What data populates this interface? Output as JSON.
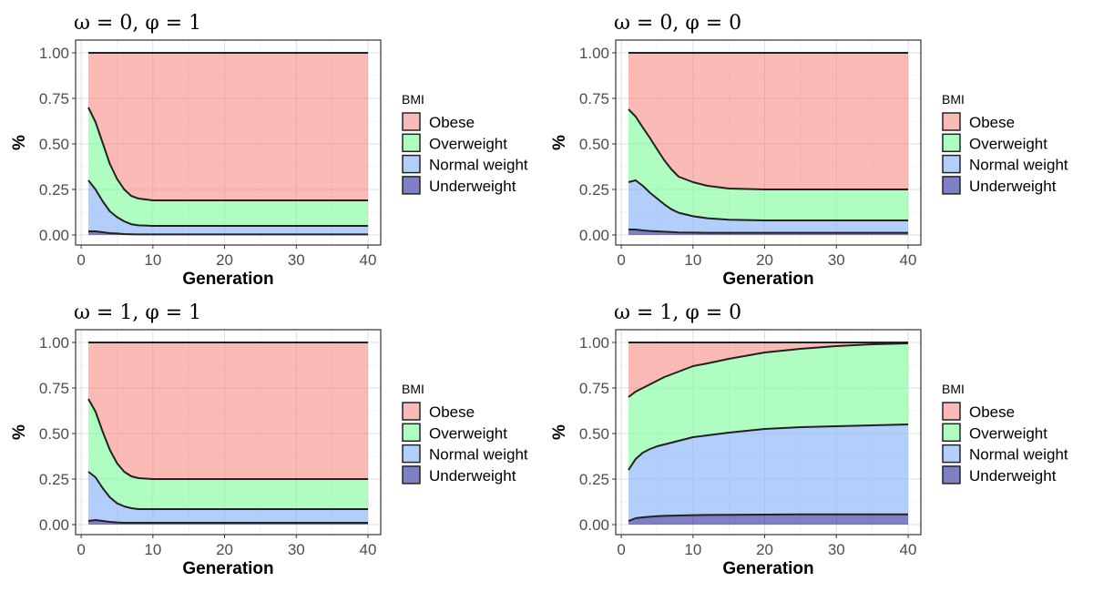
{
  "chart_data": [
    {
      "type": "area",
      "stacked": true,
      "title": "ω = 0, φ = 1",
      "xlabel": "Generation",
      "ylabel": "%",
      "xlim": [
        1,
        40
      ],
      "ylim": [
        0,
        1
      ],
      "xticks": [
        0,
        10,
        20,
        30,
        40
      ],
      "xtick_labels": [
        "0",
        "10",
        "20",
        "30",
        "40"
      ],
      "yticks": [
        0,
        0.25,
        0.5,
        0.75,
        1
      ],
      "ytick_labels": [
        "0.00",
        "0.25",
        "0.50",
        "0.75",
        "1.00"
      ],
      "grid": true,
      "legend_title": "BMI",
      "legend_position": "right",
      "x": [
        1,
        2,
        3,
        4,
        5,
        6,
        7,
        8,
        10,
        15,
        20,
        25,
        30,
        35,
        40
      ],
      "series": [
        {
          "name": "Underweight",
          "values": [
            0.02,
            0.02,
            0.015,
            0.01,
            0.008,
            0.005,
            0.004,
            0.003,
            0.003,
            0.003,
            0.003,
            0.003,
            0.003,
            0.003,
            0.003
          ]
        },
        {
          "name": "Normal weight",
          "values": [
            0.28,
            0.23,
            0.17,
            0.12,
            0.09,
            0.07,
            0.055,
            0.05,
            0.047,
            0.047,
            0.047,
            0.047,
            0.047,
            0.047,
            0.047
          ]
        },
        {
          "name": "Overweight",
          "values": [
            0.4,
            0.37,
            0.32,
            0.26,
            0.21,
            0.175,
            0.155,
            0.147,
            0.14,
            0.14,
            0.14,
            0.14,
            0.14,
            0.14,
            0.14
          ]
        },
        {
          "name": "Obese",
          "values": [
            0.3,
            0.38,
            0.495,
            0.61,
            0.692,
            0.75,
            0.786,
            0.8,
            0.81,
            0.81,
            0.81,
            0.81,
            0.81,
            0.81,
            0.81
          ]
        }
      ]
    },
    {
      "type": "area",
      "stacked": true,
      "title": "ω = 0, φ = 0",
      "xlabel": "Generation",
      "ylabel": "%",
      "xlim": [
        1,
        40
      ],
      "ylim": [
        0,
        1
      ],
      "xticks": [
        0,
        10,
        20,
        30,
        40
      ],
      "xtick_labels": [
        "0",
        "10",
        "20",
        "30",
        "40"
      ],
      "yticks": [
        0,
        0.25,
        0.5,
        0.75,
        1
      ],
      "ytick_labels": [
        "0.00",
        "0.25",
        "0.50",
        "0.75",
        "1.00"
      ],
      "grid": true,
      "legend_title": "BMI",
      "legend_position": "right",
      "x": [
        1,
        2,
        3,
        4,
        5,
        6,
        7,
        8,
        10,
        12,
        15,
        20,
        25,
        30,
        35,
        40
      ],
      "series": [
        {
          "name": "Underweight",
          "values": [
            0.03,
            0.03,
            0.025,
            0.022,
            0.02,
            0.018,
            0.016,
            0.014,
            0.013,
            0.012,
            0.012,
            0.012,
            0.012,
            0.012,
            0.012,
            0.012
          ]
        },
        {
          "name": "Normal weight",
          "values": [
            0.26,
            0.27,
            0.245,
            0.21,
            0.18,
            0.15,
            0.125,
            0.108,
            0.09,
            0.08,
            0.072,
            0.068,
            0.068,
            0.068,
            0.068,
            0.068
          ]
        },
        {
          "name": "Overweight",
          "values": [
            0.4,
            0.35,
            0.32,
            0.3,
            0.27,
            0.242,
            0.219,
            0.198,
            0.187,
            0.178,
            0.171,
            0.17,
            0.17,
            0.17,
            0.17,
            0.17
          ]
        },
        {
          "name": "Obese",
          "values": [
            0.31,
            0.35,
            0.41,
            0.468,
            0.53,
            0.59,
            0.64,
            0.68,
            0.71,
            0.73,
            0.745,
            0.75,
            0.75,
            0.75,
            0.75,
            0.75
          ]
        }
      ]
    },
    {
      "type": "area",
      "stacked": true,
      "title": "ω = 1, φ = 1",
      "xlabel": "Generation",
      "ylabel": "%",
      "xlim": [
        1,
        40
      ],
      "ylim": [
        0,
        1
      ],
      "xticks": [
        0,
        10,
        20,
        30,
        40
      ],
      "xtick_labels": [
        "0",
        "10",
        "20",
        "30",
        "40"
      ],
      "yticks": [
        0,
        0.25,
        0.5,
        0.75,
        1
      ],
      "ytick_labels": [
        "0.00",
        "0.25",
        "0.50",
        "0.75",
        "1.00"
      ],
      "grid": true,
      "legend_title": "BMI",
      "legend_position": "right",
      "x": [
        1,
        2,
        3,
        4,
        5,
        6,
        7,
        8,
        10,
        15,
        20,
        25,
        30,
        35,
        40
      ],
      "series": [
        {
          "name": "Underweight",
          "values": [
            0.02,
            0.025,
            0.02,
            0.015,
            0.012,
            0.01,
            0.01,
            0.01,
            0.01,
            0.01,
            0.01,
            0.01,
            0.01,
            0.01,
            0.01
          ]
        },
        {
          "name": "Normal weight",
          "values": [
            0.27,
            0.235,
            0.18,
            0.135,
            0.105,
            0.09,
            0.08,
            0.075,
            0.075,
            0.075,
            0.075,
            0.075,
            0.075,
            0.075,
            0.075
          ]
        },
        {
          "name": "Overweight",
          "values": [
            0.4,
            0.36,
            0.31,
            0.26,
            0.22,
            0.19,
            0.175,
            0.17,
            0.165,
            0.165,
            0.165,
            0.165,
            0.165,
            0.165,
            0.165
          ]
        },
        {
          "name": "Obese",
          "values": [
            0.31,
            0.38,
            0.49,
            0.59,
            0.663,
            0.71,
            0.735,
            0.745,
            0.75,
            0.75,
            0.75,
            0.75,
            0.75,
            0.75,
            0.75
          ]
        }
      ]
    },
    {
      "type": "area",
      "stacked": true,
      "title": "ω = 1, φ = 0",
      "xlabel": "Generation",
      "ylabel": "%",
      "xlim": [
        1,
        40
      ],
      "ylim": [
        0,
        1
      ],
      "xticks": [
        0,
        10,
        20,
        30,
        40
      ],
      "xtick_labels": [
        "0",
        "10",
        "20",
        "30",
        "40"
      ],
      "yticks": [
        0,
        0.25,
        0.5,
        0.75,
        1
      ],
      "ytick_labels": [
        "0.00",
        "0.25",
        "0.50",
        "0.75",
        "1.00"
      ],
      "grid": true,
      "legend_title": "BMI",
      "legend_position": "right",
      "x": [
        1,
        2,
        3,
        4,
        5,
        6,
        8,
        10,
        12,
        15,
        20,
        25,
        30,
        35,
        40
      ],
      "series": [
        {
          "name": "Underweight",
          "values": [
            0.02,
            0.035,
            0.04,
            0.043,
            0.046,
            0.048,
            0.05,
            0.052,
            0.053,
            0.054,
            0.055,
            0.056,
            0.056,
            0.056,
            0.056
          ]
        },
        {
          "name": "Normal weight",
          "values": [
            0.28,
            0.325,
            0.355,
            0.372,
            0.384,
            0.392,
            0.41,
            0.428,
            0.437,
            0.451,
            0.47,
            0.479,
            0.484,
            0.489,
            0.494
          ]
        },
        {
          "name": "Overweight",
          "values": [
            0.4,
            0.37,
            0.355,
            0.355,
            0.36,
            0.37,
            0.38,
            0.39,
            0.395,
            0.405,
            0.42,
            0.43,
            0.44,
            0.445,
            0.445
          ]
        },
        {
          "name": "Obese",
          "values": [
            0.3,
            0.27,
            0.25,
            0.23,
            0.21,
            0.19,
            0.16,
            0.13,
            0.115,
            0.09,
            0.055,
            0.035,
            0.02,
            0.01,
            0.005
          ]
        }
      ]
    }
  ],
  "legend": {
    "colors": {
      "Obese": "#F8766D",
      "Overweight": "#7CFC9A",
      "Normal weight": "#8AB4F8",
      "Underweight": "#00008B"
    },
    "order": [
      "Obese",
      "Overweight",
      "Normal weight",
      "Underweight"
    ]
  }
}
